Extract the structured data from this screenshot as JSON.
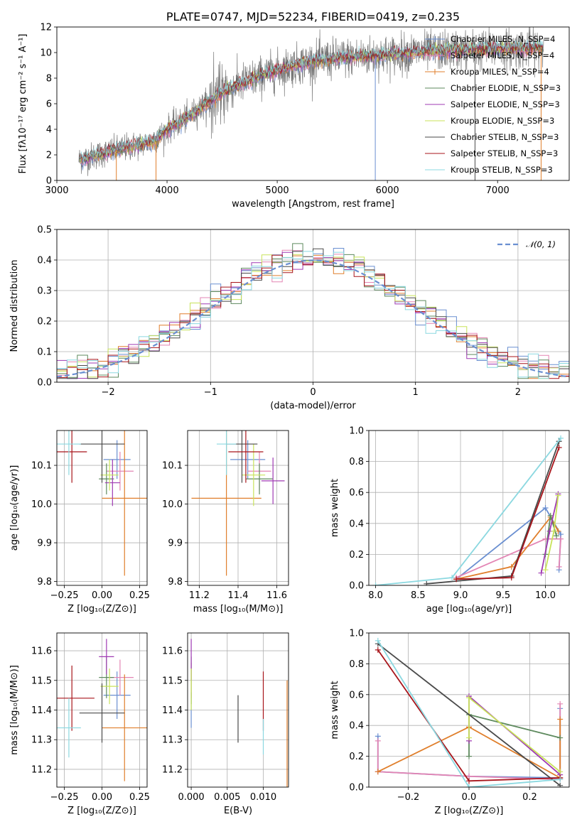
{
  "colors": {
    "chabrier_miles": "#6a8fd1",
    "salpeter_miles": "#e385b4",
    "kroupa_miles": "#e07f2c",
    "chabrier_elodie": "#5e8a5e",
    "salpeter_elodie": "#9f3ab3",
    "kroupa_elodie": "#c8e35a",
    "chabrier_stelib": "#4a4a4a",
    "salpeter_stelib": "#a8151b",
    "kroupa_stelib": "#8bd8e0",
    "normal_curve": "#6a8fd1"
  },
  "chart_data": [
    {
      "id": "spectrum",
      "type": "line",
      "title": "PLATE=0747, MJD=52234, FIBERID=0419, z=0.235",
      "xlabel": "wavelength [Angstrom, rest frame]",
      "ylabel": "Flux [fλ10⁻¹⁷ erg cm⁻² s⁻¹ A⁻¹]",
      "xlim": [
        3000,
        7650
      ],
      "ylim": [
        0,
        12
      ],
      "xticks": [
        "3000",
        "4000",
        "5000",
        "6000",
        "7000"
      ],
      "yticks": [
        "0",
        "2",
        "4",
        "6",
        "8",
        "10",
        "12"
      ],
      "legend_position": "top-right",
      "legend": [
        "Chabrier MILES, N_SSP=4",
        "Salpeter MILES, N_SSP=4",
        "Kroupa MILES, N_SSP=4",
        "Chabrier ELODIE, N_SSP=3",
        "Salpeter ELODIE, N_SSP=3",
        "Kroupa ELODIE, N_SSP=3",
        "Chabrier STELIB, N_SSP=3",
        "Salpeter STELIB, N_SSP=3",
        "Kroupa STELIB, N_SSP=3"
      ],
      "data_wavelength": [
        3200,
        3500,
        3700,
        3900,
        4000,
        4200,
        4400,
        4600,
        4800,
        5000,
        5200,
        5400,
        5600,
        5800,
        6000,
        6200,
        6400,
        6600,
        6800,
        7000,
        7200,
        7400
      ],
      "data_flux": [
        1.6,
        2.3,
        2.7,
        3.1,
        4.0,
        5.0,
        6.3,
        7.3,
        8.0,
        8.6,
        9.1,
        9.4,
        9.6,
        9.7,
        9.8,
        10.0,
        10.1,
        10.2,
        10.2,
        10.3,
        10.3,
        10.4
      ]
    },
    {
      "id": "residual_histogram",
      "type": "step",
      "xlabel": "(data-model)/error",
      "ylabel": "Normed distribution",
      "xlim": [
        -2.5,
        2.5
      ],
      "ylim": [
        0,
        0.5
      ],
      "xticks": [
        "−2",
        "−1",
        "0",
        "1",
        "2"
      ],
      "yticks": [
        "0.0",
        "0.1",
        "0.2",
        "0.3",
        "0.4",
        "0.5"
      ],
      "legend_position": "top-right",
      "curve_label": "𝒩(0, 1)",
      "bin_width": 0.1
    },
    {
      "id": "age_vs_Z",
      "type": "errorbar",
      "xlabel": "Z [log₁₀(Z/Z⊙)]",
      "ylabel": "age  [log₁₀(age/yr)]",
      "xlim": [
        -0.3,
        0.3
      ],
      "ylim": [
        9.79,
        10.19
      ],
      "xticks": [
        "−0.25",
        "0.00",
        "0.25"
      ],
      "yticks": [
        "9.8",
        "9.9",
        "10.0",
        "10.1"
      ],
      "points": [
        {
          "model": "chabrier_miles",
          "x": 0.1,
          "xerr": 0.09,
          "y": 10.115,
          "yerr": 0.05
        },
        {
          "model": "salpeter_miles",
          "x": 0.12,
          "xerr": 0.09,
          "y": 10.085,
          "yerr": 0.05
        },
        {
          "model": "kroupa_miles",
          "x": 0.15,
          "xerr": 0.15,
          "y": 10.015,
          "yerr": 0.2
        },
        {
          "model": "chabrier_elodie",
          "x": 0.03,
          "xerr": 0.05,
          "y": 10.065,
          "yerr": 0.04
        },
        {
          "model": "salpeter_elodie",
          "x": 0.07,
          "xerr": 0.05,
          "y": 10.055,
          "yerr": 0.06
        },
        {
          "model": "kroupa_elodie",
          "x": 0.05,
          "xerr": 0.06,
          "y": 10.075,
          "yerr": 0.04
        },
        {
          "model": "chabrier_stelib",
          "x": 0.0,
          "xerr": 0.15,
          "y": 10.155,
          "yerr": 0.1
        },
        {
          "model": "salpeter_stelib",
          "x": -0.2,
          "xerr": 0.1,
          "y": 10.135,
          "yerr": 0.08
        },
        {
          "model": "kroupa_stelib",
          "x": -0.22,
          "xerr": 0.08,
          "y": 10.155,
          "yerr": 0.08
        }
      ]
    },
    {
      "id": "age_vs_mass",
      "type": "errorbar",
      "xlabel": "mass [log₁₀(M/M⊙)]",
      "ylabel": "",
      "xlim": [
        11.14,
        11.66
      ],
      "ylim": [
        9.79,
        10.19
      ],
      "xticks": [
        "11.2",
        "11.4",
        "11.6"
      ],
      "yticks": [
        "9.8",
        "9.9",
        "10.0",
        "10.1"
      ],
      "points": [
        {
          "model": "chabrier_miles",
          "x": 11.45,
          "xerr": 0.09,
          "y": 10.115,
          "yerr": 0.05
        },
        {
          "model": "salpeter_miles",
          "x": 11.51,
          "xerr": 0.06,
          "y": 10.085,
          "yerr": 0.05
        },
        {
          "model": "kroupa_miles",
          "x": 11.34,
          "xerr": 0.18,
          "y": 10.015,
          "yerr": 0.2
        },
        {
          "model": "chabrier_elodie",
          "x": 11.51,
          "xerr": 0.07,
          "y": 10.065,
          "yerr": 0.04
        },
        {
          "model": "salpeter_elodie",
          "x": 11.58,
          "xerr": 0.06,
          "y": 10.06,
          "yerr": 0.06
        },
        {
          "model": "kroupa_elodie",
          "x": 11.48,
          "xerr": 0.06,
          "y": 10.075,
          "yerr": 0.08
        },
        {
          "model": "chabrier_stelib",
          "x": 11.42,
          "xerr": 0.08,
          "y": 10.155,
          "yerr": 0.1
        },
        {
          "model": "salpeter_stelib",
          "x": 11.44,
          "xerr": 0.09,
          "y": 10.135,
          "yerr": 0.08
        },
        {
          "model": "kroupa_stelib",
          "x": 11.34,
          "xerr": 0.05,
          "y": 10.155,
          "yerr": 0.08
        }
      ]
    },
    {
      "id": "weight_vs_age",
      "type": "line",
      "xlabel": "age  [log₁₀(age/yr)]",
      "ylabel": "mass weight",
      "xlim": [
        7.92,
        10.28
      ],
      "ylim": [
        0,
        1
      ],
      "xticks": [
        "8.0",
        "8.5",
        "9.0",
        "9.5",
        "10.0"
      ],
      "yticks": [
        "0.0",
        "0.2",
        "0.4",
        "0.6",
        "0.8",
        "1.0"
      ],
      "series": [
        {
          "model": "chabrier_miles",
          "x": [
            8.95,
            10.0,
            10.18,
            10.16
          ],
          "y": [
            0.04,
            0.5,
            0.33,
            0.1
          ]
        },
        {
          "model": "salpeter_miles",
          "x": [
            8.95,
            10.0,
            10.18,
            10.16
          ],
          "y": [
            0.05,
            0.3,
            0.3,
            0.12
          ]
        },
        {
          "model": "kroupa_miles",
          "x": [
            8.95,
            9.6,
            10.06,
            10.15
          ],
          "y": [
            0.04,
            0.12,
            0.44,
            0.35
          ]
        },
        {
          "model": "chabrier_elodie",
          "x": [
            10.0,
            10.06,
            10.13
          ],
          "y": [
            0.2,
            0.45,
            0.32
          ]
        },
        {
          "model": "salpeter_elodie",
          "x": [
            9.95,
            10.05,
            10.15
          ],
          "y": [
            0.08,
            0.35,
            0.59
          ]
        },
        {
          "model": "kroupa_elodie",
          "x": [
            10.0,
            10.1,
            10.15
          ],
          "y": [
            0.1,
            0.35,
            0.58
          ]
        },
        {
          "model": "chabrier_stelib",
          "x": [
            8.6,
            9.6,
            10.16
          ],
          "y": [
            0.01,
            0.06,
            0.93
          ]
        },
        {
          "model": "salpeter_stelib",
          "x": [
            8.95,
            9.6,
            10.16
          ],
          "y": [
            0.04,
            0.05,
            0.89
          ]
        },
        {
          "model": "kroupa_stelib",
          "x": [
            8.0,
            8.9,
            10.18
          ],
          "y": [
            0.0,
            0.05,
            0.95
          ]
        }
      ]
    },
    {
      "id": "mass_vs_Z",
      "type": "errorbar",
      "xlabel": "Z [log₁₀(Z/Z⊙)]",
      "ylabel": "mass [log₁₀(M/M⊙)]",
      "xlim": [
        -0.3,
        0.3
      ],
      "ylim": [
        11.14,
        11.66
      ],
      "xticks": [
        "−0.25",
        "0.00",
        "0.25"
      ],
      "yticks": [
        "11.2",
        "11.3",
        "11.4",
        "11.5",
        "11.6"
      ],
      "points": [
        {
          "model": "chabrier_miles",
          "x": 0.1,
          "xerr": 0.09,
          "y": 11.45,
          "yerr": 0.08
        },
        {
          "model": "salpeter_miles",
          "x": 0.12,
          "xerr": 0.09,
          "y": 11.51,
          "yerr": 0.06
        },
        {
          "model": "kroupa_miles",
          "x": 0.15,
          "xerr": 0.15,
          "y": 11.34,
          "yerr": 0.18
        },
        {
          "model": "chabrier_elodie",
          "x": 0.03,
          "xerr": 0.05,
          "y": 11.51,
          "yerr": 0.07
        },
        {
          "model": "salpeter_elodie",
          "x": 0.03,
          "xerr": 0.05,
          "y": 11.58,
          "yerr": 0.06
        },
        {
          "model": "kroupa_elodie",
          "x": 0.05,
          "xerr": 0.06,
          "y": 11.48,
          "yerr": 0.06
        },
        {
          "model": "chabrier_stelib",
          "x": 0.0,
          "xerr": 0.15,
          "y": 11.39,
          "yerr": 0.1
        },
        {
          "model": "salpeter_stelib",
          "x": -0.2,
          "xerr": 0.15,
          "y": 11.44,
          "yerr": 0.11
        },
        {
          "model": "kroupa_stelib",
          "x": -0.22,
          "xerr": 0.08,
          "y": 11.34,
          "yerr": 0.1
        }
      ]
    },
    {
      "id": "mass_vs_EBV",
      "type": "errorbar",
      "xlabel": "E(B-V)",
      "ylabel": "",
      "xlim": [
        -0.0005,
        0.0135
      ],
      "ylim": [
        11.14,
        11.66
      ],
      "xticks": [
        "0.000",
        "0.005",
        "0.010"
      ],
      "yticks": [
        "11.2",
        "11.3",
        "11.4",
        "11.5",
        "11.6"
      ],
      "points": [
        {
          "model": "chabrier_miles",
          "x": 0.0,
          "xerr": 0,
          "y": 11.4,
          "yerr": 0.06
        },
        {
          "model": "salpeter_miles",
          "x": 0.0,
          "xerr": 0,
          "y": 11.5,
          "yerr": 0.06
        },
        {
          "model": "kroupa_miles",
          "x": 0.0133,
          "xerr": 0,
          "y": 11.32,
          "yerr": 0.18
        },
        {
          "model": "chabrier_elodie",
          "x": 0.0,
          "xerr": 0,
          "y": 11.5,
          "yerr": 0.08
        },
        {
          "model": "salpeter_elodie",
          "x": 0.0,
          "xerr": 0,
          "y": 11.57,
          "yerr": 0.07
        },
        {
          "model": "kroupa_elodie",
          "x": 0.0,
          "xerr": 0,
          "y": 11.47,
          "yerr": 0.07
        },
        {
          "model": "chabrier_stelib",
          "x": 0.0065,
          "xerr": 0,
          "y": 11.37,
          "yerr": 0.08
        },
        {
          "model": "salpeter_stelib",
          "x": 0.01,
          "xerr": 0,
          "y": 11.43,
          "yerr": 0.1
        },
        {
          "model": "kroupa_stelib",
          "x": 0.01,
          "xerr": 0,
          "y": 11.31,
          "yerr": 0.06
        }
      ]
    },
    {
      "id": "weight_vs_Z",
      "type": "line",
      "xlabel": "Z [log₁₀(Z/Z⊙)]",
      "ylabel": "mass weight",
      "xlim": [
        -0.33,
        0.33
      ],
      "ylim": [
        0,
        1
      ],
      "xticks": [
        "−0.2",
        "0.0",
        "0.2"
      ],
      "yticks": [
        "0.0",
        "0.2",
        "0.4",
        "0.6",
        "0.8",
        "1.0"
      ],
      "series": [
        {
          "model": "chabrier_miles",
          "x": [
            -0.3,
            -0.3,
            0.0,
            0.3,
            0.3
          ],
          "y": [
            0.33,
            0.1,
            0.07,
            0.06,
            0.51
          ]
        },
        {
          "model": "salpeter_miles",
          "x": [
            -0.3,
            -0.3,
            0.0,
            0.3,
            0.3
          ],
          "y": [
            0.3,
            0.1,
            0.07,
            0.05,
            0.54
          ]
        },
        {
          "model": "kroupa_miles",
          "x": [
            -0.3,
            0.0,
            0.3,
            0.3
          ],
          "y": [
            0.1,
            0.39,
            0.06,
            0.44
          ]
        },
        {
          "model": "chabrier_elodie",
          "x": [
            0.0,
            0.0,
            0.3
          ],
          "y": [
            0.2,
            0.47,
            0.32
          ]
        },
        {
          "model": "salpeter_elodie",
          "x": [
            0.0,
            0.0,
            0.3
          ],
          "y": [
            0.3,
            0.59,
            0.08
          ]
        },
        {
          "model": "kroupa_elodie",
          "x": [
            0.0,
            0.0,
            0.3
          ],
          "y": [
            0.32,
            0.58,
            0.1
          ]
        },
        {
          "model": "chabrier_stelib",
          "x": [
            -0.3,
            0.3
          ],
          "y": [
            0.93,
            0.01
          ]
        },
        {
          "model": "salpeter_stelib",
          "x": [
            -0.3,
            0.0,
            0.3
          ],
          "y": [
            0.89,
            0.04,
            0.06
          ]
        },
        {
          "model": "kroupa_stelib",
          "x": [
            -0.3,
            0.0,
            0.3
          ],
          "y": [
            0.95,
            0.0,
            0.05
          ]
        }
      ]
    }
  ]
}
